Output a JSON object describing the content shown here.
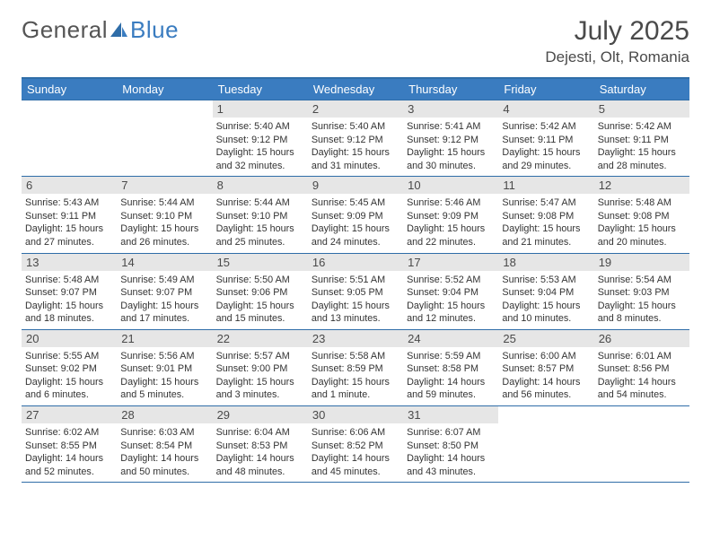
{
  "logo": {
    "text1": "General",
    "text2": "Blue"
  },
  "title": {
    "month": "July 2025",
    "location": "Dejesti, Olt, Romania"
  },
  "colors": {
    "header_bg": "#3a7cc0",
    "header_line": "#2f6da8",
    "daynum_bg": "#e6e6e6",
    "text": "#4a4a4a"
  },
  "day_labels": [
    "Sunday",
    "Monday",
    "Tuesday",
    "Wednesday",
    "Thursday",
    "Friday",
    "Saturday"
  ],
  "weeks": [
    [
      {
        "n": "",
        "sr": "",
        "ss": "",
        "dl": "",
        "empty": true
      },
      {
        "n": "",
        "sr": "",
        "ss": "",
        "dl": "",
        "empty": true
      },
      {
        "n": "1",
        "sr": "5:40 AM",
        "ss": "9:12 PM",
        "dl": "15 hours and 32 minutes."
      },
      {
        "n": "2",
        "sr": "5:40 AM",
        "ss": "9:12 PM",
        "dl": "15 hours and 31 minutes."
      },
      {
        "n": "3",
        "sr": "5:41 AM",
        "ss": "9:12 PM",
        "dl": "15 hours and 30 minutes."
      },
      {
        "n": "4",
        "sr": "5:42 AM",
        "ss": "9:11 PM",
        "dl": "15 hours and 29 minutes."
      },
      {
        "n": "5",
        "sr": "5:42 AM",
        "ss": "9:11 PM",
        "dl": "15 hours and 28 minutes."
      }
    ],
    [
      {
        "n": "6",
        "sr": "5:43 AM",
        "ss": "9:11 PM",
        "dl": "15 hours and 27 minutes."
      },
      {
        "n": "7",
        "sr": "5:44 AM",
        "ss": "9:10 PM",
        "dl": "15 hours and 26 minutes."
      },
      {
        "n": "8",
        "sr": "5:44 AM",
        "ss": "9:10 PM",
        "dl": "15 hours and 25 minutes."
      },
      {
        "n": "9",
        "sr": "5:45 AM",
        "ss": "9:09 PM",
        "dl": "15 hours and 24 minutes."
      },
      {
        "n": "10",
        "sr": "5:46 AM",
        "ss": "9:09 PM",
        "dl": "15 hours and 22 minutes."
      },
      {
        "n": "11",
        "sr": "5:47 AM",
        "ss": "9:08 PM",
        "dl": "15 hours and 21 minutes."
      },
      {
        "n": "12",
        "sr": "5:48 AM",
        "ss": "9:08 PM",
        "dl": "15 hours and 20 minutes."
      }
    ],
    [
      {
        "n": "13",
        "sr": "5:48 AM",
        "ss": "9:07 PM",
        "dl": "15 hours and 18 minutes."
      },
      {
        "n": "14",
        "sr": "5:49 AM",
        "ss": "9:07 PM",
        "dl": "15 hours and 17 minutes."
      },
      {
        "n": "15",
        "sr": "5:50 AM",
        "ss": "9:06 PM",
        "dl": "15 hours and 15 minutes."
      },
      {
        "n": "16",
        "sr": "5:51 AM",
        "ss": "9:05 PM",
        "dl": "15 hours and 13 minutes."
      },
      {
        "n": "17",
        "sr": "5:52 AM",
        "ss": "9:04 PM",
        "dl": "15 hours and 12 minutes."
      },
      {
        "n": "18",
        "sr": "5:53 AM",
        "ss": "9:04 PM",
        "dl": "15 hours and 10 minutes."
      },
      {
        "n": "19",
        "sr": "5:54 AM",
        "ss": "9:03 PM",
        "dl": "15 hours and 8 minutes."
      }
    ],
    [
      {
        "n": "20",
        "sr": "5:55 AM",
        "ss": "9:02 PM",
        "dl": "15 hours and 6 minutes."
      },
      {
        "n": "21",
        "sr": "5:56 AM",
        "ss": "9:01 PM",
        "dl": "15 hours and 5 minutes."
      },
      {
        "n": "22",
        "sr": "5:57 AM",
        "ss": "9:00 PM",
        "dl": "15 hours and 3 minutes."
      },
      {
        "n": "23",
        "sr": "5:58 AM",
        "ss": "8:59 PM",
        "dl": "15 hours and 1 minute."
      },
      {
        "n": "24",
        "sr": "5:59 AM",
        "ss": "8:58 PM",
        "dl": "14 hours and 59 minutes."
      },
      {
        "n": "25",
        "sr": "6:00 AM",
        "ss": "8:57 PM",
        "dl": "14 hours and 56 minutes."
      },
      {
        "n": "26",
        "sr": "6:01 AM",
        "ss": "8:56 PM",
        "dl": "14 hours and 54 minutes."
      }
    ],
    [
      {
        "n": "27",
        "sr": "6:02 AM",
        "ss": "8:55 PM",
        "dl": "14 hours and 52 minutes."
      },
      {
        "n": "28",
        "sr": "6:03 AM",
        "ss": "8:54 PM",
        "dl": "14 hours and 50 minutes."
      },
      {
        "n": "29",
        "sr": "6:04 AM",
        "ss": "8:53 PM",
        "dl": "14 hours and 48 minutes."
      },
      {
        "n": "30",
        "sr": "6:06 AM",
        "ss": "8:52 PM",
        "dl": "14 hours and 45 minutes."
      },
      {
        "n": "31",
        "sr": "6:07 AM",
        "ss": "8:50 PM",
        "dl": "14 hours and 43 minutes."
      },
      {
        "n": "",
        "sr": "",
        "ss": "",
        "dl": "",
        "empty": true
      },
      {
        "n": "",
        "sr": "",
        "ss": "",
        "dl": "",
        "empty": true
      }
    ]
  ],
  "labels": {
    "sunrise": "Sunrise:",
    "sunset": "Sunset:",
    "daylight": "Daylight:"
  }
}
